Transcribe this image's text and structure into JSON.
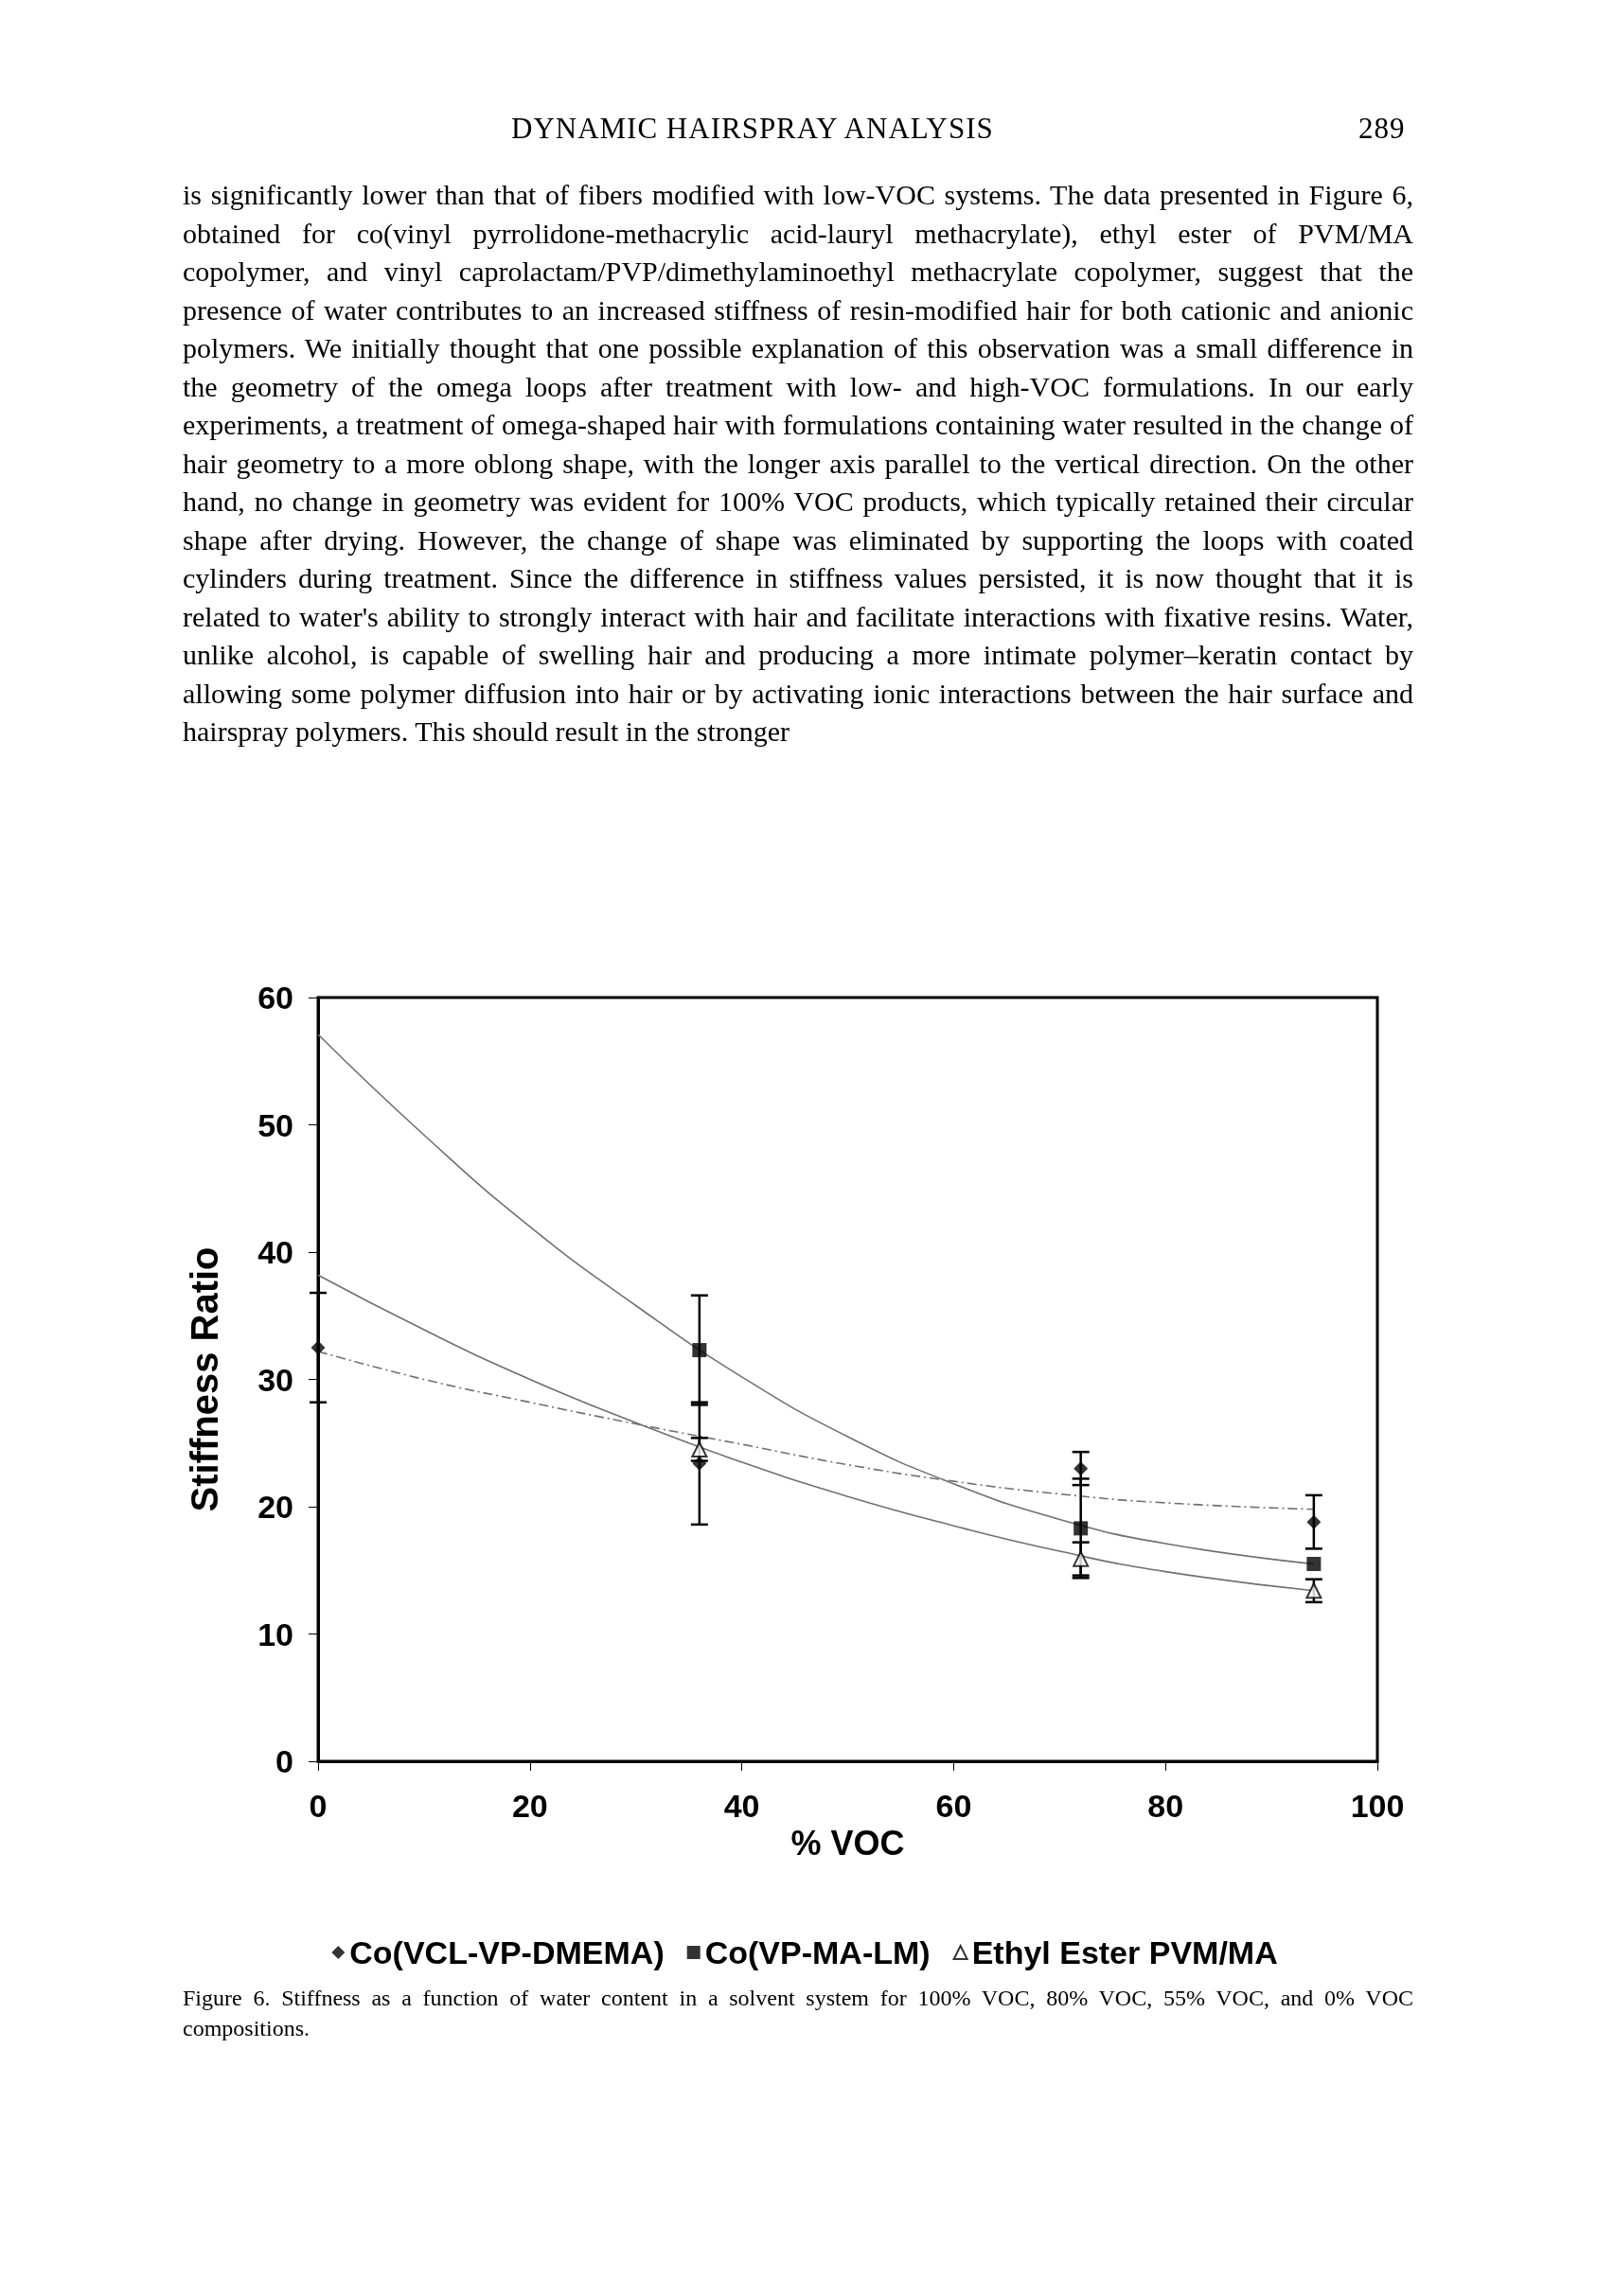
{
  "chart_data": {
    "type": "scatter",
    "annotations": [
      "DYNAMIC HAIRSPRAY ANALYSIS",
      "289",
      "is significantly lower than that of fibers modified with low-VOC systems. The data presented in Figure 6, obtained for co(vinyl pyrrolidone-methacrylic acid-lauryl methacrylate), ethyl ester of PVM/MA copolymer, and vinyl caprolactam/PVP/dimethylaminoethyl methacrylate copolymer, suggest that the presence of water contributes to an increased stiffness of resin-modified hair for both cationic and anionic polymers. We initially thought that one possible explanation of this observation was a small difference in the geometry of the omega loops after treatment with low- and high-VOC formulations. In our early experiments, a treatment of omega-shaped hair with formulations containing water resulted in the change of hair geometry to a more oblong shape, with the longer axis parallel to the vertical direction. On the other hand, no change in geometry was evident for 100% VOC products, which typically retained their circular shape after drying. However, the change of shape was eliminated by supporting the loops with coated cylinders during treatment. Since the difference in stiffness values persisted, it is now thought that it is related to water's ability to strongly interact with hair and facilitate interactions with fixative resins. Water, unlike alcohol, is capable of swelling hair and producing a more intimate polymer–keratin contact by allowing some polymer diffusion into hair or by activating ionic interactions between the hair surface and hairspray polymers. This should result in the stronger",
      "Figure 6. Stiffness as a function of water content in a solvent system for 100% VOC, 80% VOC, 55% VOC, and 0% VOC compositions."
    ],
    "xlabel": "% VOC",
    "ylabel": "Stiffness Ratio",
    "xlim": [
      0,
      100
    ],
    "xticks": [
      0,
      20,
      40,
      60,
      80,
      100
    ],
    "ylim": [
      0,
      60
    ],
    "yticks": [
      0,
      10,
      20,
      30,
      40,
      50,
      60
    ],
    "grid": false,
    "legend": "bottom",
    "series": [
      {
        "type": "line",
        "color": "#707070",
        "line_style": "solid",
        "marker": "none",
        "x": [
          0,
          10,
          20,
          30,
          40,
          50,
          60,
          70,
          80,
          94
        ],
        "values": [
          57.1,
          49.2,
          42.0,
          35.8,
          30.2,
          25.5,
          21.8,
          19.0,
          17.1,
          15.5
        ]
      },
      {
        "type": "line",
        "color": "#707070",
        "line_style": "solid",
        "marker": "none",
        "x": [
          0,
          10,
          20,
          30,
          40,
          50,
          60,
          70,
          80,
          94
        ],
        "values": [
          38.2,
          33.9,
          30.0,
          26.6,
          23.5,
          20.8,
          18.5,
          16.5,
          14.9,
          13.4
        ]
      },
      {
        "type": "line",
        "color": "#707070",
        "line_style": "dashed",
        "marker": "none",
        "x": [
          0,
          10,
          20,
          30,
          40,
          50,
          60,
          70,
          80,
          94
        ],
        "values": [
          32.2,
          30.0,
          28.2,
          26.5,
          24.9,
          23.3,
          22.0,
          21.0,
          20.3,
          19.8
        ]
      },
      {
        "name": "Co(VCL-VP-DMEMA)",
        "marker": "diamond",
        "color": "#000000",
        "x": [
          0,
          36,
          72,
          94
        ],
        "values": [
          32.5,
          23.4,
          23.0,
          18.8
        ],
        "errors": [
          4.3,
          4.8,
          1.3,
          2.1
        ]
      },
      {
        "name": "Co(VP-MA-LM)",
        "marker": "square",
        "color": "#000000",
        "x": [
          36,
          72,
          94
        ],
        "values": [
          32.3,
          18.3,
          15.5
        ],
        "errors": [
          4.3,
          3.9,
          null
        ]
      },
      {
        "name": "Ethyl Ester PVM/MA",
        "marker": "triangle",
        "color": "#000000",
        "x": [
          36,
          72,
          94
        ],
        "values": [
          24.5,
          15.9,
          13.4
        ],
        "errors": [
          0.9,
          1.3,
          0.9
        ]
      }
    ]
  }
}
